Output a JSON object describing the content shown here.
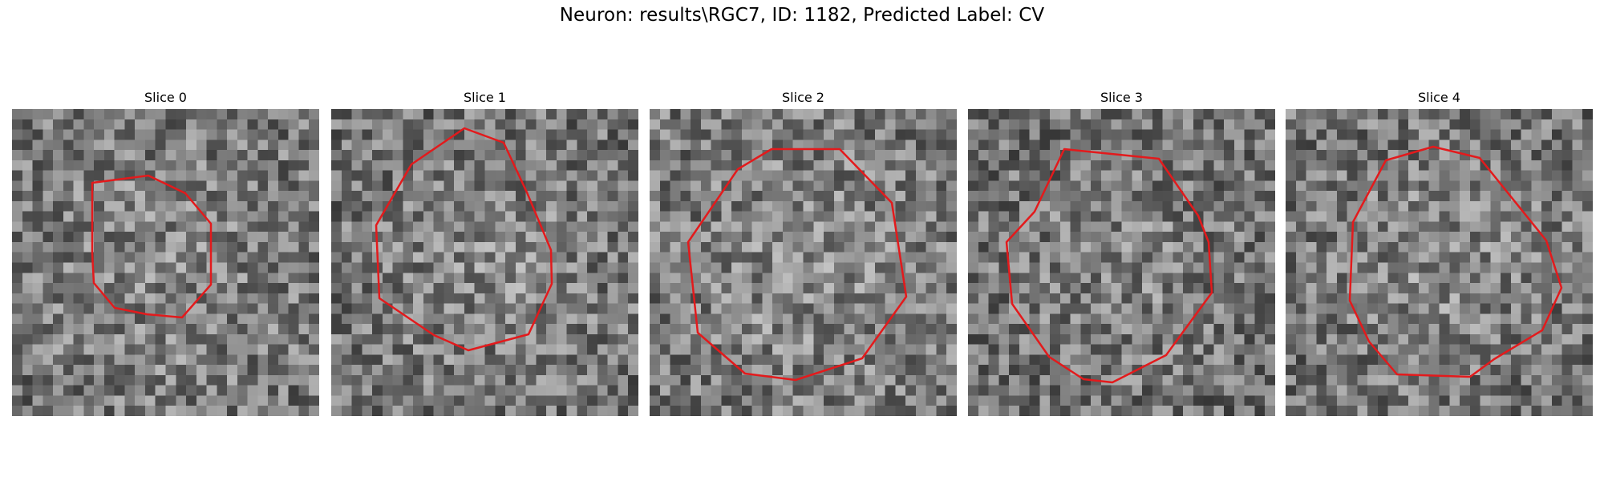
{
  "figure": {
    "title": "Neuron: results\\RGC7, ID: 1182, Predicted Label: CV",
    "roi_color": "#e31a1c"
  },
  "panels": [
    {
      "title": "Slice 0",
      "seed": 11,
      "base_gray": 128,
      "bright_center": 0.35
    },
    {
      "title": "Slice 1",
      "seed": 23,
      "base_gray": 125,
      "bright_center": 0.55
    },
    {
      "title": "Slice 2",
      "seed": 37,
      "base_gray": 130,
      "bright_center": 0.45
    },
    {
      "title": "Slice 3",
      "seed": 51,
      "base_gray": 122,
      "bright_center": 0.35
    },
    {
      "title": "Slice 4",
      "seed": 67,
      "base_gray": 126,
      "bright_center": 0.55
    }
  ]
}
